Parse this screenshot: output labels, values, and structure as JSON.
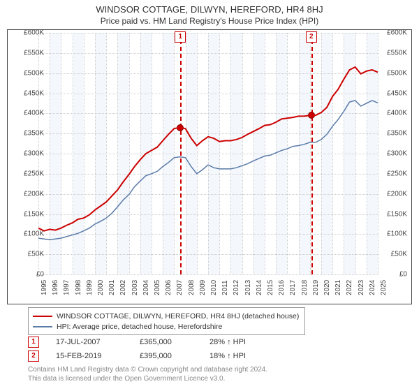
{
  "title": "WINDSOR COTTAGE, DILWYN, HEREFORD, HR4 8HJ",
  "subtitle": "Price paid vs. HM Land Registry's House Price Index (HPI)",
  "chart": {
    "type": "line",
    "background_color": "#ffffff",
    "grid_color": "#cccccc",
    "yaxis": {
      "min": 0,
      "max": 600,
      "step": 50,
      "prefix": "£",
      "suffix": "K",
      "labels": [
        "£0",
        "£50K",
        "£100K",
        "£150K",
        "£200K",
        "£250K",
        "£300K",
        "£350K",
        "£400K",
        "£450K",
        "£500K",
        "£550K",
        "£600K"
      ]
    },
    "xaxis": {
      "min": 1995,
      "max": 2025,
      "step": 1,
      "labels": [
        "1995",
        "1996",
        "1997",
        "1998",
        "1999",
        "2000",
        "2001",
        "2002",
        "2003",
        "2004",
        "2005",
        "2006",
        "2007",
        "2008",
        "2009",
        "2010",
        "2011",
        "2012",
        "2013",
        "2014",
        "2015",
        "2016",
        "2017",
        "2018",
        "2019",
        "2020",
        "2021",
        "2022",
        "2023",
        "2024",
        "2025"
      ],
      "bands": {
        "color_odd": "#eaf2fb",
        "color_even": "#ffffff"
      }
    },
    "series": [
      {
        "name": "WINDSOR COTTAGE, DILWYN, HEREFORD, HR4 8HJ (detached house)",
        "color": "#cc0000",
        "width": 2,
        "data": [
          [
            1995,
            115
          ],
          [
            1995.5,
            108
          ],
          [
            1996,
            112
          ],
          [
            1996.5,
            110
          ],
          [
            1997,
            115
          ],
          [
            1997.5,
            122
          ],
          [
            1998,
            128
          ],
          [
            1998.5,
            137
          ],
          [
            1999,
            140
          ],
          [
            1999.5,
            148
          ],
          [
            2000,
            160
          ],
          [
            2000.5,
            170
          ],
          [
            2001,
            180
          ],
          [
            2001.5,
            195
          ],
          [
            2002,
            210
          ],
          [
            2002.5,
            230
          ],
          [
            2003,
            248
          ],
          [
            2003.5,
            268
          ],
          [
            2004,
            285
          ],
          [
            2004.5,
            300
          ],
          [
            2005,
            308
          ],
          [
            2005.5,
            316
          ],
          [
            2006,
            332
          ],
          [
            2006.5,
            348
          ],
          [
            2007,
            362
          ],
          [
            2007.5,
            365
          ],
          [
            2008,
            362
          ],
          [
            2008.5,
            338
          ],
          [
            2009,
            320
          ],
          [
            2009.5,
            332
          ],
          [
            2010,
            342
          ],
          [
            2010.5,
            338
          ],
          [
            2011,
            330
          ],
          [
            2011.5,
            332
          ],
          [
            2012,
            332
          ],
          [
            2012.5,
            335
          ],
          [
            2013,
            340
          ],
          [
            2013.5,
            348
          ],
          [
            2014,
            355
          ],
          [
            2014.5,
            362
          ],
          [
            2015,
            370
          ],
          [
            2015.5,
            372
          ],
          [
            2016,
            378
          ],
          [
            2016.5,
            386
          ],
          [
            2017,
            388
          ],
          [
            2017.5,
            390
          ],
          [
            2018,
            393
          ],
          [
            2018.5,
            393
          ],
          [
            2019,
            395
          ],
          [
            2019.5,
            395
          ],
          [
            2020,
            402
          ],
          [
            2020.5,
            415
          ],
          [
            2021,
            442
          ],
          [
            2021.5,
            460
          ],
          [
            2022,
            485
          ],
          [
            2022.5,
            508
          ],
          [
            2023,
            515
          ],
          [
            2023.5,
            498
          ],
          [
            2024,
            505
          ],
          [
            2024.5,
            508
          ],
          [
            2025,
            502
          ]
        ]
      },
      {
        "name": "HPI: Average price, detached house, Herefordshire",
        "color": "#5b7ba8",
        "width": 1.5,
        "data": [
          [
            1995,
            90
          ],
          [
            1995.5,
            88
          ],
          [
            1996,
            86
          ],
          [
            1996.5,
            88
          ],
          [
            1997,
            90
          ],
          [
            1997.5,
            94
          ],
          [
            1998,
            98
          ],
          [
            1998.5,
            102
          ],
          [
            1999,
            108
          ],
          [
            1999.5,
            115
          ],
          [
            2000,
            125
          ],
          [
            2000.5,
            132
          ],
          [
            2001,
            140
          ],
          [
            2001.5,
            152
          ],
          [
            2002,
            168
          ],
          [
            2002.5,
            185
          ],
          [
            2003,
            198
          ],
          [
            2003.5,
            218
          ],
          [
            2004,
            232
          ],
          [
            2004.5,
            245
          ],
          [
            2005,
            250
          ],
          [
            2005.5,
            256
          ],
          [
            2006,
            268
          ],
          [
            2006.5,
            278
          ],
          [
            2007,
            290
          ],
          [
            2007.5,
            292
          ],
          [
            2008,
            290
          ],
          [
            2008.5,
            268
          ],
          [
            2009,
            250
          ],
          [
            2009.5,
            260
          ],
          [
            2010,
            272
          ],
          [
            2010.5,
            265
          ],
          [
            2011,
            262
          ],
          [
            2011.5,
            262
          ],
          [
            2012,
            262
          ],
          [
            2012.5,
            265
          ],
          [
            2013,
            270
          ],
          [
            2013.5,
            275
          ],
          [
            2014,
            282
          ],
          [
            2014.5,
            288
          ],
          [
            2015,
            294
          ],
          [
            2015.5,
            296
          ],
          [
            2016,
            302
          ],
          [
            2016.5,
            308
          ],
          [
            2017,
            312
          ],
          [
            2017.5,
            318
          ],
          [
            2018,
            320
          ],
          [
            2018.5,
            323
          ],
          [
            2019,
            328
          ],
          [
            2019.5,
            328
          ],
          [
            2020,
            335
          ],
          [
            2020.5,
            348
          ],
          [
            2021,
            368
          ],
          [
            2021.5,
            385
          ],
          [
            2022,
            405
          ],
          [
            2022.5,
            428
          ],
          [
            2023,
            432
          ],
          [
            2023.5,
            418
          ],
          [
            2024,
            425
          ],
          [
            2024.5,
            432
          ],
          [
            2025,
            426
          ]
        ]
      }
    ],
    "markers": [
      {
        "num": "1",
        "year": 2007.55,
        "price": 365
      },
      {
        "num": "2",
        "year": 2019.12,
        "price": 395
      }
    ],
    "font_size_axis": 10
  },
  "legend": {
    "rows": [
      {
        "color": "#cc0000",
        "label": "WINDSOR COTTAGE, DILWYN, HEREFORD, HR4 8HJ (detached house)"
      },
      {
        "color": "#5b7ba8",
        "label": "HPI: Average price, detached house, Herefordshire"
      }
    ]
  },
  "sales": [
    {
      "num": "1",
      "date": "17-JUL-2007",
      "price": "£365,000",
      "delta": "28% ↑ HPI"
    },
    {
      "num": "2",
      "date": "15-FEB-2019",
      "price": "£395,000",
      "delta": "18% ↑ HPI"
    }
  ],
  "attribution": {
    "line1": "Contains HM Land Registry data © Crown copyright and database right 2024.",
    "line2": "This data is licensed under the Open Government Licence v3.0."
  }
}
